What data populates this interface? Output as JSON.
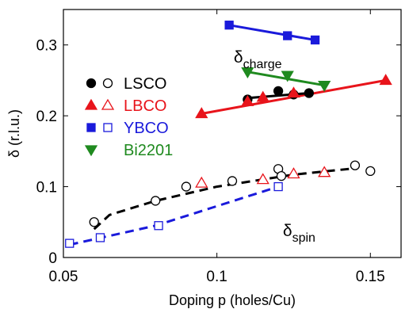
{
  "chart_data": {
    "type": "scatter",
    "xlabel": "Doping p (holes/Cu)",
    "ylabel": "δ (r.l.u.)",
    "xlim": [
      0.05,
      0.16
    ],
    "ylim": [
      0,
      0.35
    ],
    "xticks": [
      0.05,
      0.1,
      0.15
    ],
    "xtick_labels": [
      "0.05",
      "0.1",
      "0.15"
    ],
    "yticks": [
      0,
      0.1,
      0.2,
      0.3
    ],
    "ytick_labels": [
      "0",
      "0.1",
      "0.2",
      "0.3"
    ],
    "grid": false,
    "legend_position": "left",
    "legend": [
      {
        "label": "LSCO",
        "color": "#000000",
        "filled_marker": "circle",
        "open_marker": "circle"
      },
      {
        "label": "LBCO",
        "color": "#e8141b",
        "filled_marker": "triangle-up",
        "open_marker": "triangle-up"
      },
      {
        "label": "YBCO",
        "color": "#1a1adb",
        "filled_marker": "square",
        "open_marker": "square"
      },
      {
        "label": "Bi2201",
        "color": "#1f8a1f",
        "filled_marker": "triangle-down"
      }
    ],
    "series": [
      {
        "name": "LSCO",
        "kind": "charge",
        "marker": "circle",
        "filled": true,
        "color": "#000000",
        "points": [
          [
            0.11,
            0.223
          ],
          [
            0.12,
            0.235
          ],
          [
            0.125,
            0.23
          ],
          [
            0.13,
            0.232
          ]
        ]
      },
      {
        "name": "LSCO",
        "kind": "spin",
        "marker": "circle",
        "filled": false,
        "color": "#000000",
        "points": [
          [
            0.06,
            0.05
          ],
          [
            0.08,
            0.08
          ],
          [
            0.09,
            0.1
          ],
          [
            0.105,
            0.108
          ],
          [
            0.12,
            0.125
          ],
          [
            0.121,
            0.115
          ],
          [
            0.145,
            0.13
          ],
          [
            0.15,
            0.122
          ]
        ]
      },
      {
        "name": "LBCO",
        "kind": "charge",
        "marker": "triangle-up",
        "filled": true,
        "color": "#e8141b",
        "points": [
          [
            0.095,
            0.203
          ],
          [
            0.11,
            0.22
          ],
          [
            0.115,
            0.226
          ],
          [
            0.125,
            0.232
          ],
          [
            0.155,
            0.25
          ]
        ]
      },
      {
        "name": "LBCO",
        "kind": "spin",
        "marker": "triangle-up",
        "filled": false,
        "color": "#e8141b",
        "points": [
          [
            0.095,
            0.105
          ],
          [
            0.115,
            0.11
          ],
          [
            0.125,
            0.118
          ],
          [
            0.135,
            0.12
          ]
        ]
      },
      {
        "name": "YBCO",
        "kind": "charge",
        "marker": "square",
        "filled": true,
        "color": "#1a1adb",
        "points": [
          [
            0.104,
            0.328
          ],
          [
            0.123,
            0.313
          ],
          [
            0.132,
            0.307
          ]
        ]
      },
      {
        "name": "YBCO",
        "kind": "spin",
        "marker": "square",
        "filled": false,
        "color": "#1a1adb",
        "points": [
          [
            0.052,
            0.02
          ],
          [
            0.062,
            0.028
          ],
          [
            0.081,
            0.045
          ],
          [
            0.12,
            0.1
          ]
        ]
      },
      {
        "name": "Bi2201",
        "kind": "charge",
        "marker": "triangle-down",
        "filled": true,
        "color": "#1f8a1f",
        "points": [
          [
            0.11,
            0.262
          ],
          [
            0.123,
            0.257
          ],
          [
            0.135,
            0.243
          ]
        ]
      }
    ],
    "fit_lines": [
      {
        "color": "#e8141b",
        "style": "solid",
        "points": [
          [
            0.095,
            0.203
          ],
          [
            0.155,
            0.25
          ]
        ]
      },
      {
        "color": "#1a1adb",
        "style": "solid",
        "points": [
          [
            0.104,
            0.328
          ],
          [
            0.132,
            0.307
          ]
        ]
      },
      {
        "color": "#1f8a1f",
        "style": "solid",
        "points": [
          [
            0.11,
            0.262
          ],
          [
            0.135,
            0.243
          ]
        ]
      },
      {
        "color": "#000000",
        "style": "solid",
        "points": [
          [
            0.11,
            0.225
          ],
          [
            0.13,
            0.232
          ]
        ]
      },
      {
        "color": "#000000",
        "style": "dashed",
        "points": [
          [
            0.06,
            0.04
          ],
          [
            0.065,
            0.06
          ],
          [
            0.08,
            0.08
          ],
          [
            0.1,
            0.1
          ],
          [
            0.125,
            0.117
          ],
          [
            0.143,
            0.125
          ]
        ]
      },
      {
        "color": "#1a1adb",
        "style": "dashed",
        "points": [
          [
            0.052,
            0.018
          ],
          [
            0.08,
            0.045
          ],
          [
            0.12,
            0.1
          ]
        ]
      }
    ],
    "annotations": [
      {
        "text": "δ",
        "sub": "charge",
        "x": 0.1055,
        "y": 0.275
      },
      {
        "text": "δ",
        "sub": "spin",
        "x": 0.1215,
        "y": 0.03
      }
    ]
  }
}
